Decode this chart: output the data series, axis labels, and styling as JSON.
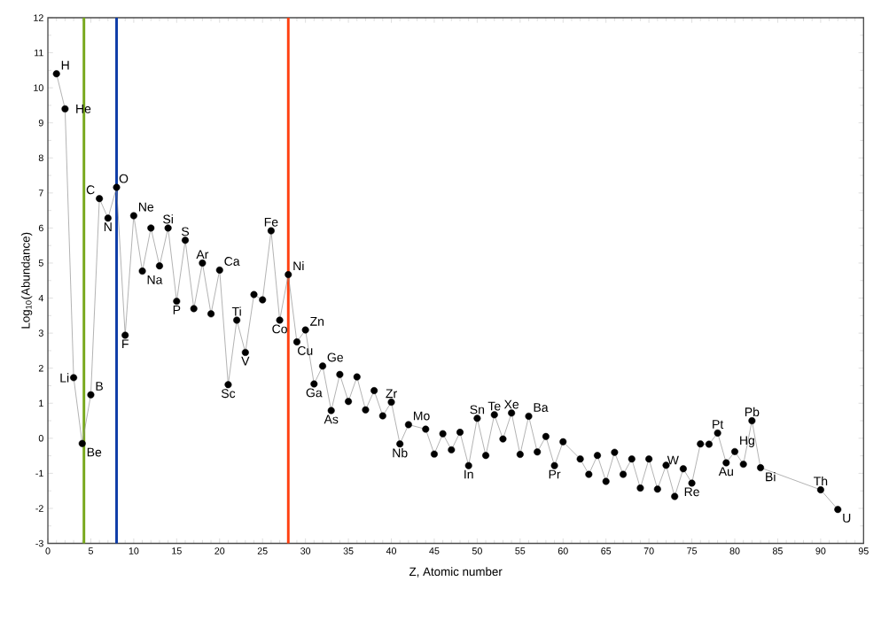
{
  "chart_data": {
    "type": "line",
    "xlabel": "Z, Atomic number",
    "ylabel": "Log$_{10}$(Abundance)",
    "x": [
      1,
      2,
      3,
      4,
      5,
      6,
      7,
      8,
      9,
      10,
      11,
      12,
      13,
      14,
      15,
      16,
      17,
      18,
      19,
      20,
      21,
      22,
      23,
      24,
      25,
      26,
      27,
      28,
      29,
      30,
      31,
      32,
      33,
      34,
      35,
      36,
      37,
      38,
      39,
      40,
      41,
      42,
      44,
      45,
      46,
      47,
      48,
      49,
      50,
      51,
      52,
      53,
      54,
      55,
      56,
      57,
      58,
      59,
      60,
      62,
      63,
      64,
      65,
      66,
      67,
      68,
      69,
      70,
      71,
      72,
      73,
      74,
      75,
      76,
      77,
      78,
      79,
      80,
      81,
      82,
      83,
      90,
      92
    ],
    "series": [
      {
        "color": "#000000",
        "values": [
          10.4,
          9.4,
          1.73,
          -0.15,
          1.24,
          6.84,
          6.28,
          7.16,
          2.94,
          6.35,
          4.77,
          6.0,
          4.92,
          6.0,
          3.91,
          5.65,
          3.7,
          5.0,
          3.55,
          4.8,
          1.53,
          3.37,
          2.45,
          4.1,
          3.95,
          5.92,
          3.37,
          4.67,
          2.75,
          3.09,
          1.55,
          2.06,
          0.79,
          1.82,
          1.05,
          1.75,
          0.81,
          1.36,
          0.64,
          1.03,
          -0.16,
          0.39,
          0.26,
          -0.45,
          0.13,
          -0.33,
          0.17,
          -0.78,
          0.57,
          -0.49,
          0.67,
          -0.02,
          0.72,
          -0.46,
          0.63,
          -0.39,
          0.05,
          -0.78,
          -0.1,
          -0.59,
          -1.03,
          -0.49,
          -1.23,
          -0.4,
          -1.03,
          -0.59,
          -1.42,
          -0.59,
          -1.45,
          -0.77,
          -1.66,
          -0.87,
          -1.28,
          -0.16,
          -0.17,
          0.15,
          -0.7,
          -0.38,
          -0.74,
          0.5,
          -0.84,
          -1.47,
          -2.03
        ]
      }
    ],
    "xlim": [
      0,
      95
    ],
    "ylim": [
      -3,
      12
    ],
    "xticks": [
      0,
      5,
      10,
      15,
      20,
      25,
      30,
      35,
      40,
      45,
      50,
      55,
      60,
      65,
      70,
      75,
      80,
      85,
      90,
      95
    ],
    "yticks": [
      -3,
      -2,
      -1,
      0,
      1,
      2,
      3,
      4,
      5,
      6,
      7,
      8,
      9,
      10,
      11,
      12
    ],
    "marker": "circle",
    "grid": false,
    "ref_lines": [
      {
        "axis": "x",
        "value": 4.2,
        "color": "#77a81c"
      },
      {
        "axis": "x",
        "value": 8,
        "color": "#0d3ca8"
      },
      {
        "axis": "x",
        "value": 28,
        "color": "#ff4010"
      }
    ],
    "annotations": [
      {
        "text": "H",
        "x": 1,
        "y": 10.4
      },
      {
        "text": "He",
        "x": 2,
        "y": 9.4
      },
      {
        "text": "Li",
        "x": 3,
        "y": 1.73
      },
      {
        "text": "Be",
        "x": 4,
        "y": -0.15
      },
      {
        "text": "B",
        "x": 5,
        "y": 1.24
      },
      {
        "text": "C",
        "x": 6,
        "y": 6.84
      },
      {
        "text": "N",
        "x": 7,
        "y": 6.28
      },
      {
        "text": "O",
        "x": 8,
        "y": 7.16
      },
      {
        "text": "F",
        "x": 9,
        "y": 2.94
      },
      {
        "text": "Ne",
        "x": 10,
        "y": 6.35
      },
      {
        "text": "Na",
        "x": 11,
        "y": 4.77
      },
      {
        "text": "Si",
        "x": 14,
        "y": 6.0
      },
      {
        "text": "P",
        "x": 15,
        "y": 3.91
      },
      {
        "text": "S",
        "x": 16,
        "y": 5.65
      },
      {
        "text": "Ar",
        "x": 18,
        "y": 5.0
      },
      {
        "text": "Ca",
        "x": 20,
        "y": 4.8
      },
      {
        "text": "Sc",
        "x": 21,
        "y": 1.53
      },
      {
        "text": "Ti",
        "x": 22,
        "y": 3.37
      },
      {
        "text": "V",
        "x": 23,
        "y": 2.45
      },
      {
        "text": "Fe",
        "x": 26,
        "y": 5.92
      },
      {
        "text": "Co",
        "x": 27,
        "y": 3.37
      },
      {
        "text": "Ni",
        "x": 28,
        "y": 4.67
      },
      {
        "text": "Cu",
        "x": 29,
        "y": 2.75
      },
      {
        "text": "Zn",
        "x": 30,
        "y": 3.09
      },
      {
        "text": "Ga",
        "x": 31,
        "y": 1.55
      },
      {
        "text": "Ge",
        "x": 32,
        "y": 2.06
      },
      {
        "text": "As",
        "x": 33,
        "y": 0.79
      },
      {
        "text": "Zr",
        "x": 40,
        "y": 1.03
      },
      {
        "text": "Nb",
        "x": 41,
        "y": -0.16
      },
      {
        "text": "Mo",
        "x": 42,
        "y": 0.39
      },
      {
        "text": "In",
        "x": 49,
        "y": -0.78
      },
      {
        "text": "Sn",
        "x": 50,
        "y": 0.57
      },
      {
        "text": "Te",
        "x": 52,
        "y": 0.67
      },
      {
        "text": "Xe",
        "x": 54,
        "y": 0.72
      },
      {
        "text": "Ba",
        "x": 56,
        "y": 0.63
      },
      {
        "text": "Pr",
        "x": 59,
        "y": -0.78
      },
      {
        "text": "W",
        "x": 74,
        "y": -0.87
      },
      {
        "text": "Re",
        "x": 75,
        "y": -1.28
      },
      {
        "text": "Pt",
        "x": 78,
        "y": 0.15
      },
      {
        "text": "Au",
        "x": 79,
        "y": -0.7
      },
      {
        "text": "Hg",
        "x": 80,
        "y": -0.38
      },
      {
        "text": "Pb",
        "x": 82,
        "y": 0.5
      },
      {
        "text": "Bi",
        "x": 83,
        "y": -0.84
      },
      {
        "text": "Th",
        "x": 90,
        "y": -1.47
      },
      {
        "text": "U",
        "x": 92,
        "y": -2.03
      }
    ]
  }
}
